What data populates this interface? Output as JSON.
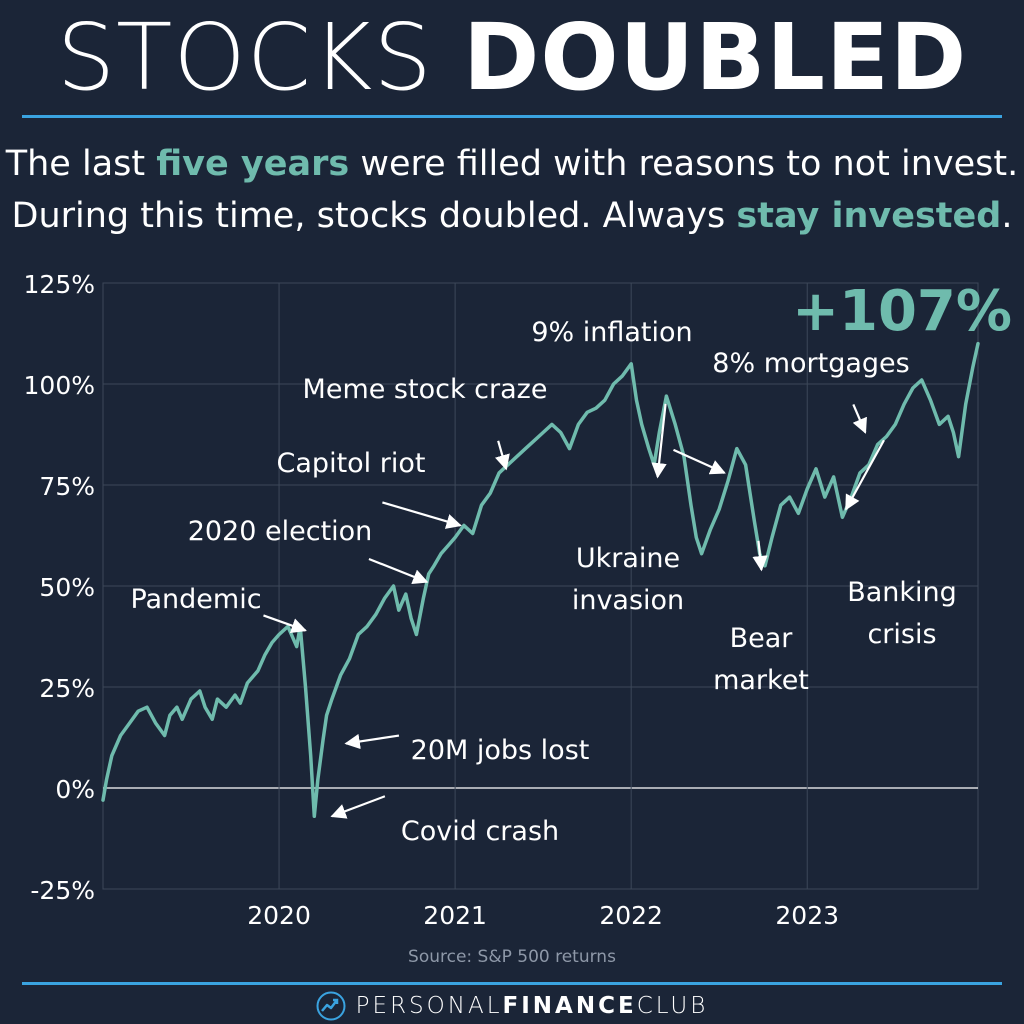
{
  "header": {
    "title_light": "STOCKS",
    "title_bold": "DOUBLED",
    "subtitle_line1_a": "The last ",
    "subtitle_line1_hl": "five years",
    "subtitle_line1_b": " were filled with reasons to not invest.",
    "subtitle_line2_a": "During this time, stocks doubled. Always ",
    "subtitle_line2_hl": "stay invested",
    "subtitle_line2_b": "."
  },
  "colors": {
    "background": "#1b2537",
    "accent": "#6fbbad",
    "rule": "#3aa3e0",
    "grid": "#3d4859"
  },
  "chart_data": {
    "type": "line",
    "title": "",
    "xlabel": "",
    "ylabel": "",
    "x_unit": "year",
    "xlim": [
      2019.0,
      2023.97
    ],
    "ylim": [
      -25,
      125
    ],
    "y_ticks": [
      125,
      100,
      75,
      50,
      25,
      0,
      -25
    ],
    "y_tick_labels": [
      "125%",
      "100%",
      "75%",
      "50%",
      "25%",
      "0%",
      "-25%"
    ],
    "x_ticks": [
      2020,
      2021,
      2022,
      2023
    ],
    "x_tick_labels": [
      "2020",
      "2021",
      "2022",
      "2023"
    ],
    "grid": true,
    "series": [
      {
        "name": "S&P 500 cumulative return (%)",
        "x": [
          2019.0,
          2019.02,
          2019.05,
          2019.1,
          2019.15,
          2019.2,
          2019.25,
          2019.3,
          2019.35,
          2019.38,
          2019.42,
          2019.45,
          2019.5,
          2019.55,
          2019.58,
          2019.62,
          2019.65,
          2019.7,
          2019.75,
          2019.78,
          2019.82,
          2019.88,
          2019.92,
          2019.96,
          2020.0,
          2020.05,
          2020.1,
          2020.12,
          2020.15,
          2020.18,
          2020.2,
          2020.22,
          2020.25,
          2020.27,
          2020.3,
          2020.35,
          2020.4,
          2020.45,
          2020.5,
          2020.55,
          2020.6,
          2020.65,
          2020.68,
          2020.72,
          2020.75,
          2020.78,
          2020.82,
          2020.85,
          2020.88,
          2020.92,
          2020.96,
          2021.0,
          2021.05,
          2021.1,
          2021.15,
          2021.2,
          2021.25,
          2021.3,
          2021.35,
          2021.4,
          2021.45,
          2021.5,
          2021.55,
          2021.6,
          2021.65,
          2021.7,
          2021.75,
          2021.8,
          2021.85,
          2021.9,
          2021.95,
          2022.0,
          2022.03,
          2022.06,
          2022.1,
          2022.13,
          2022.16,
          2022.2,
          2022.25,
          2022.3,
          2022.34,
          2022.37,
          2022.4,
          2022.45,
          2022.5,
          2022.55,
          2022.6,
          2022.65,
          2022.7,
          2022.73,
          2022.76,
          2022.8,
          2022.85,
          2022.9,
          2022.95,
          2023.0,
          2023.05,
          2023.1,
          2023.15,
          2023.2,
          2023.25,
          2023.3,
          2023.35,
          2023.4,
          2023.45,
          2023.5,
          2023.55,
          2023.6,
          2023.65,
          2023.7,
          2023.75,
          2023.8,
          2023.83,
          2023.86,
          2023.9,
          2023.94,
          2023.97
        ],
        "values": [
          -3,
          2,
          8,
          13,
          16,
          19,
          20,
          16,
          13,
          18,
          20,
          17,
          22,
          24,
          20,
          17,
          22,
          20,
          23,
          21,
          26,
          29,
          33,
          36,
          38,
          40,
          35,
          40,
          25,
          8,
          -7,
          2,
          12,
          18,
          22,
          28,
          32,
          38,
          40,
          43,
          47,
          50,
          44,
          48,
          42,
          38,
          47,
          53,
          55,
          58,
          60,
          62,
          65,
          63,
          70,
          73,
          78,
          80,
          82,
          84,
          86,
          88,
          90,
          88,
          84,
          90,
          93,
          94,
          96,
          100,
          102,
          105,
          96,
          90,
          84,
          80,
          88,
          97,
          90,
          82,
          70,
          62,
          58,
          64,
          69,
          76,
          84,
          80,
          66,
          58,
          55,
          62,
          70,
          72,
          68,
          74,
          79,
          72,
          77,
          67,
          72,
          78,
          80,
          85,
          87,
          90,
          95,
          99,
          101,
          96,
          90,
          92,
          88,
          82,
          95,
          104,
          110
        ]
      }
    ],
    "highlight_value": "+107%",
    "annotations": [
      {
        "text": "Pandemic",
        "x": 2020.15,
        "y": 39
      },
      {
        "text": "2020 election",
        "x": 2020.84,
        "y": 51
      },
      {
        "text": "Capitol riot",
        "x": 2021.03,
        "y": 65
      },
      {
        "text": "Meme stock craze",
        "x": 2021.29,
        "y": 79
      },
      {
        "text": "9% inflation",
        "x": 2022.53,
        "y": 78
      },
      {
        "text": "8% mortgages",
        "x": 2023.33,
        "y": 88
      },
      {
        "text": "Ukraine invasion",
        "x": 2022.15,
        "y": 77
      },
      {
        "text": "Bear market",
        "x": 2022.74,
        "y": 54
      },
      {
        "text": "Banking crisis",
        "x": 2023.22,
        "y": 69
      },
      {
        "text": "20M jobs lost",
        "x": 2020.38,
        "y": 11
      },
      {
        "text": "Covid crash",
        "x": 2020.3,
        "y": -7
      }
    ],
    "legend": "none"
  },
  "source": "Source: S&P 500 returns",
  "footer": {
    "brand_light_1": "PERSONAL",
    "brand_bold": "FINANCE",
    "brand_light_2": "CLUB"
  }
}
